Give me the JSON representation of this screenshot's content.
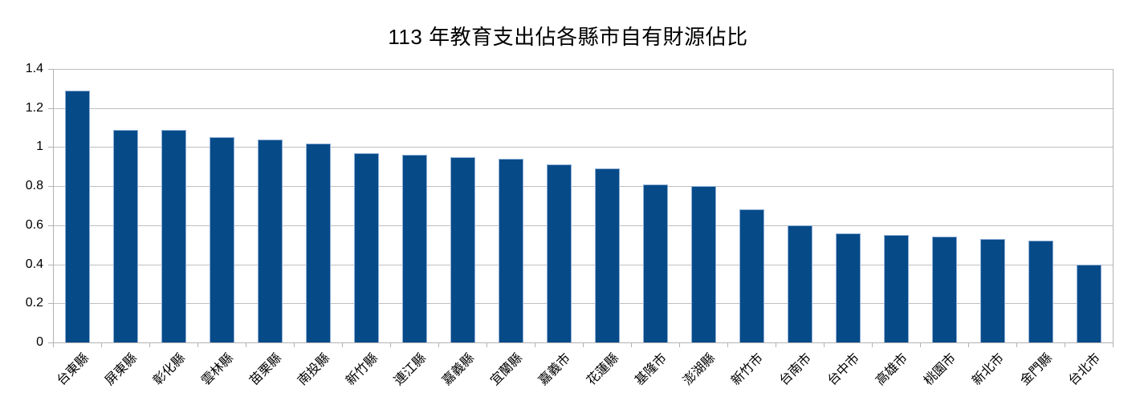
{
  "chart_data": {
    "type": "bar",
    "title": "113 年教育支出佔各縣市自有財源佔比",
    "categories": [
      "台東縣",
      "屏東縣",
      "彰化縣",
      "雲林縣",
      "苗栗縣",
      "南投縣",
      "新竹縣",
      "連江縣",
      "嘉義縣",
      "宜蘭縣",
      "嘉義市",
      "花蓮縣",
      "基隆市",
      "澎湖縣",
      "新竹市",
      "台南市",
      "台中市",
      "高雄市",
      "桃園市",
      "新北市",
      "金門縣",
      "台北市"
    ],
    "values": [
      1.29,
      1.09,
      1.09,
      1.05,
      1.04,
      1.02,
      0.97,
      0.96,
      0.95,
      0.94,
      0.91,
      0.89,
      0.81,
      0.8,
      0.68,
      0.6,
      0.56,
      0.55,
      0.54,
      0.53,
      0.52,
      0.4
    ],
    "xlabel": "",
    "ylabel": "",
    "ylim": [
      0,
      1.4
    ],
    "ytick_step": 0.2,
    "ytick_labels": [
      "0",
      "0.2",
      "0.4",
      "0.6",
      "0.8",
      "1",
      "1.2",
      "1.4"
    ],
    "grid": true,
    "legend": false,
    "colors": {
      "bar_fill": "#064A88",
      "bar_border": "#8FAFD6",
      "gridline": "#BFBFBF",
      "axis": "#B3B3B3",
      "text": "#000000"
    }
  }
}
